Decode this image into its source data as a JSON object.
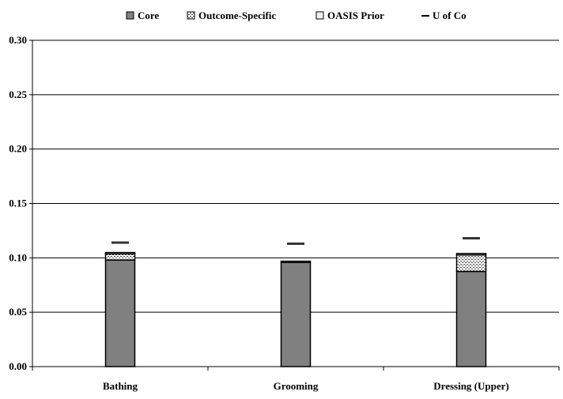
{
  "chart_data": {
    "type": "bar",
    "stacked": true,
    "title": "",
    "xlabel": "",
    "ylabel": "",
    "ylim": [
      0,
      0.3
    ],
    "yticks": [
      "0.00",
      "0.05",
      "0.10",
      "0.15",
      "0.20",
      "0.25",
      "0.30"
    ],
    "grid": true,
    "legend_position": "top",
    "categories": [
      "Bathing",
      "Grooming",
      "Dressing (Upper)"
    ],
    "series": [
      {
        "name": "Core",
        "values": [
          0.098,
          0.0957,
          0.0875
        ],
        "color": "#808080",
        "pattern": "solid"
      },
      {
        "name": "Outcome-Specific",
        "values": [
          0.0056,
          0,
          0.0152
        ],
        "color": "#ffffff",
        "pattern": "dots"
      },
      {
        "name": "OASIS Prior",
        "values": [
          0.0013,
          0.0012,
          0.0013
        ],
        "color": "#ffffff",
        "pattern": "solid"
      },
      {
        "name": "U of Co",
        "values": [
          0.114,
          0.113,
          0.118
        ],
        "color": "#333333",
        "pattern": "marker-dash"
      }
    ]
  }
}
